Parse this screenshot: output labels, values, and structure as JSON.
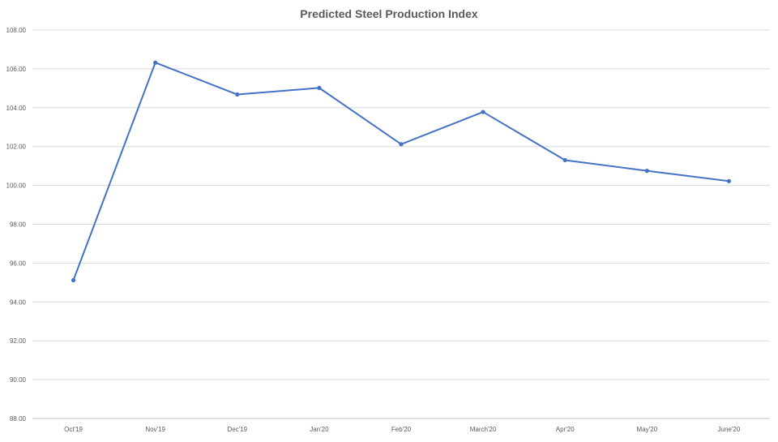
{
  "chart_data": {
    "type": "line",
    "title": "Predicted Steel Production Index",
    "xlabel": "",
    "ylabel": "",
    "categories": [
      "Oct'19",
      "Nov'19",
      "Dec'19",
      "Jan'20",
      "Feb'20",
      "March'20",
      "Apr'20",
      "May'20",
      "June'20"
    ],
    "series": [
      {
        "values": [
          95.12,
          106.32,
          104.68,
          105.02,
          102.12,
          103.78,
          101.3,
          100.75,
          100.22
        ],
        "color": "#4472c4"
      }
    ],
    "ylim": [
      88,
      108
    ],
    "ytick_labels": [
      "88.00",
      "90.00",
      "92.00",
      "94.00",
      "96.00",
      "98.00",
      "100.00",
      "102.00",
      "104.00",
      "106.00",
      "108.00"
    ],
    "grid": true,
    "legend": "none",
    "colors": {
      "line": "#4472c4",
      "grid": "#d9d9d9",
      "text": "#595959"
    }
  }
}
